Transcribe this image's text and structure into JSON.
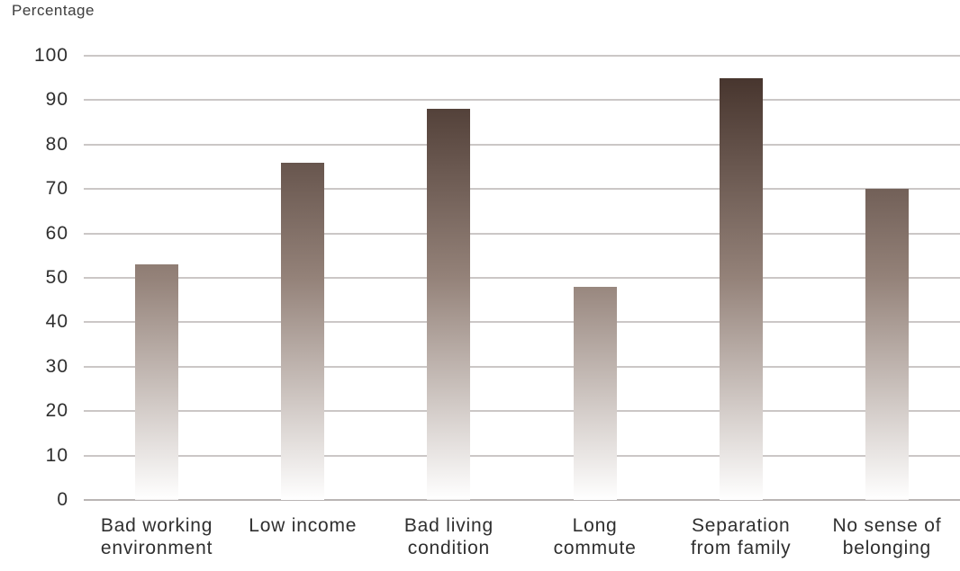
{
  "chart_data": {
    "type": "bar",
    "title": "",
    "ylabel": "Percentage",
    "xlabel": "",
    "categories": [
      "Bad working environment",
      "Low income",
      "Bad living condition",
      "Long commute",
      "Separation from family",
      "No sense of belonging"
    ],
    "values": [
      53,
      76,
      88,
      48,
      95,
      70
    ],
    "ylim": [
      0,
      100
    ],
    "yticks": [
      0,
      10,
      20,
      30,
      40,
      50,
      60,
      70,
      80,
      90,
      100
    ],
    "ytick_labels": [
      "0",
      "10",
      "20",
      "30",
      "40",
      "50",
      "60",
      "70",
      "80",
      "90",
      "100"
    ],
    "grid": true,
    "legend_position": "none",
    "bar_style": "vertical gradient, dark brown at top of plot fading to white at baseline; each bar shows the bottom slice of the full-height gradient"
  },
  "category_display_labels": [
    "Bad working\nenvironment",
    "Low income",
    "Bad living\ncondition",
    "Long\ncommute",
    "Separation\nfrom family",
    "No sense of\nbelonging"
  ],
  "colors": {
    "gradient_top": "#3f2d26",
    "gradient_mid": "#948279",
    "gradient_bottom": "#ffffff",
    "gridline": "#cbc7c6",
    "baseline": "#b9b5b4",
    "text": "#2f2f2f",
    "background": "#ffffff"
  }
}
